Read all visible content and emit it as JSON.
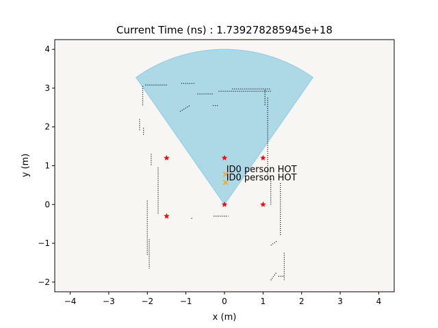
{
  "chart_data": {
    "type": "scatter",
    "title": "Current Time (ns) : 1.739278285945e+18",
    "xlabel": "x (m)",
    "ylabel": "y (m)",
    "xlim": [
      -4.4,
      4.4
    ],
    "ylim": [
      -2.25,
      4.25
    ],
    "xticks": [
      -4,
      -3,
      -2,
      -1,
      0,
      1,
      2,
      3,
      4
    ],
    "yticks": [
      -2,
      -1,
      0,
      1,
      2,
      3,
      4
    ],
    "xtick_labels": [
      "−4",
      "−3",
      "−2",
      "−1",
      "0",
      "1",
      "2",
      "3",
      "4"
    ],
    "ytick_labels": [
      "−2",
      "−1",
      "0",
      "1",
      "2",
      "3",
      "4"
    ],
    "grid": false,
    "colors": {
      "background": "#f7f6f2",
      "fov_fill": "#add8e6",
      "fov_edge": "#87ceeb",
      "marker": "#ff0000",
      "person": "#ffa500",
      "obstacle": "#000000"
    },
    "field_of_view": {
      "apex": [
        0,
        0
      ],
      "radius": 4.0,
      "angle_start_deg": 55,
      "angle_end_deg": 125
    },
    "markers": [
      {
        "x": -1.5,
        "y": 1.2
      },
      {
        "x": 0.0,
        "y": 1.2
      },
      {
        "x": 1.0,
        "y": 1.2
      },
      {
        "x": -1.5,
        "y": -0.3
      },
      {
        "x": 0.0,
        "y": 0.0
      },
      {
        "x": 1.0,
        "y": 0.0
      }
    ],
    "persons": [
      {
        "x": 0.03,
        "y": 0.78,
        "label": "ID0 person HOT"
      },
      {
        "x": 0.03,
        "y": 0.57,
        "label": "ID0 person HOT"
      }
    ],
    "obstacle_segments": [
      {
        "start": [
          -2.05,
          3.08
        ],
        "end": [
          -1.5,
          3.08
        ]
      },
      {
        "start": [
          -1.12,
          3.12
        ],
        "end": [
          -0.75,
          3.12
        ]
      },
      {
        "start": [
          -0.7,
          2.85
        ],
        "end": [
          -0.3,
          2.85
        ]
      },
      {
        "start": [
          -0.15,
          2.92
        ],
        "end": [
          1.2,
          2.92
        ]
      },
      {
        "start": [
          0.2,
          2.98
        ],
        "end": [
          1.2,
          2.98
        ]
      },
      {
        "start": [
          -0.3,
          2.55
        ],
        "end": [
          -0.15,
          2.55
        ]
      },
      {
        "start": [
          -1.15,
          2.4
        ],
        "end": [
          -0.9,
          2.55
        ]
      },
      {
        "start": [
          -2.12,
          3.05
        ],
        "end": [
          -2.12,
          2.55
        ]
      },
      {
        "start": [
          -2.2,
          2.2
        ],
        "end": [
          -2.2,
          1.9
        ]
      },
      {
        "start": [
          -2.1,
          1.8
        ],
        "end": [
          -2.1,
          2.0
        ]
      },
      {
        "start": [
          -1.9,
          1.3
        ],
        "end": [
          -1.9,
          1.0
        ]
      },
      {
        "start": [
          -1.72,
          0.95
        ],
        "end": [
          -1.72,
          -0.25
        ]
      },
      {
        "start": [
          -2.0,
          0.1
        ],
        "end": [
          -2.0,
          -1.3
        ]
      },
      {
        "start": [
          -1.95,
          -0.9
        ],
        "end": [
          -1.95,
          -1.65
        ]
      },
      {
        "start": [
          -0.85,
          -0.35
        ],
        "end": [
          -0.85,
          -0.4
        ]
      },
      {
        "start": [
          -0.28,
          -0.3
        ],
        "end": [
          0.1,
          -0.3
        ]
      },
      {
        "start": [
          1.05,
          2.95
        ],
        "end": [
          1.05,
          2.55
        ]
      },
      {
        "start": [
          1.12,
          2.75
        ],
        "end": [
          1.12,
          0.65
        ]
      },
      {
        "start": [
          1.2,
          0.0
        ],
        "end": [
          1.2,
          0.65
        ]
      },
      {
        "start": [
          1.2,
          0.65
        ],
        "end": [
          1.25,
          0.65
        ]
      },
      {
        "start": [
          1.45,
          0.55
        ],
        "end": [
          1.45,
          -0.8
        ]
      },
      {
        "start": [
          1.35,
          -0.95
        ],
        "end": [
          1.2,
          -1.05
        ]
      },
      {
        "start": [
          1.55,
          -1.25
        ],
        "end": [
          1.55,
          -1.95
        ]
      },
      {
        "start": [
          1.2,
          -1.95
        ],
        "end": [
          1.35,
          -1.75
        ]
      },
      {
        "start": [
          1.4,
          -1.85
        ],
        "end": [
          1.55,
          -1.85
        ]
      }
    ]
  }
}
